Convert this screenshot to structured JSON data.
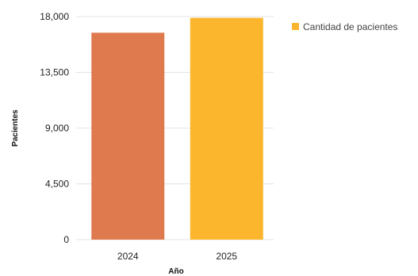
{
  "chart_data": {
    "type": "bar",
    "title": "",
    "xlabel": "Año",
    "ylabel": "Pacientes",
    "categories": [
      "2024",
      "2025"
    ],
    "values": [
      16700,
      17900
    ],
    "bar_colors": [
      "#DE7A4E",
      "#FBB62E"
    ],
    "ylim": [
      0,
      18000
    ],
    "yticks": [
      "18,000",
      "13,500",
      "9,000",
      "4,500",
      "0"
    ],
    "grid": true,
    "legend": {
      "placement": "top-right",
      "entries": [
        {
          "label": "Cantidad de pacientes",
          "color": "#FBB62E"
        }
      ]
    }
  }
}
